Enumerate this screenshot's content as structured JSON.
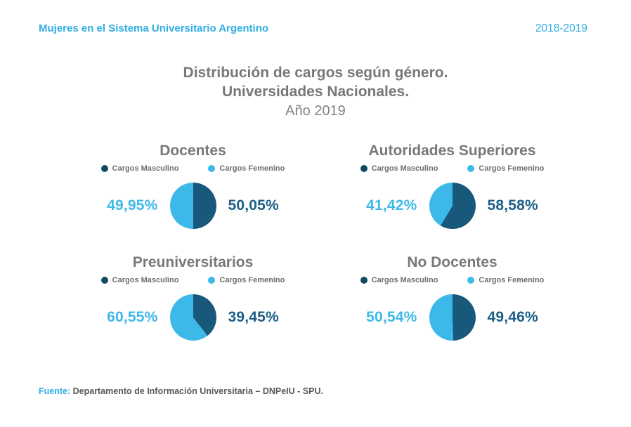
{
  "header": {
    "title": "Mujeres en el Sistema Universitario Argentino",
    "period": "2018-2019"
  },
  "main_title": {
    "line1": "Distribución de cargos según género.",
    "line2": "Universidades Nacionales.",
    "line3": "Año 2019"
  },
  "legend": {
    "masculino": "Cargos Masculino",
    "femenino": "Cargos Femenino"
  },
  "footer": {
    "label": "Fuente:",
    "text": "Departamento de Información Universitaria – DNPeIU - SPU."
  },
  "colors": {
    "accent": "#2FAEE3",
    "femenino": "#3DB9E9",
    "masculino": "#18587A",
    "masculino_text": "#1D5F87",
    "masculino_dot": "#114A63",
    "title_gray": "#77787B",
    "subtitle_gray": "#808285",
    "legend_gray": "#6D6E71",
    "footer_gray": "#58595B"
  },
  "chart_data": [
    {
      "type": "pie",
      "title": "Docentes",
      "legend_position": "top",
      "slices": [
        {
          "label": "Cargos Masculino",
          "value": 50.05,
          "display": "50,05%"
        },
        {
          "label": "Cargos Femenino",
          "value": 49.95,
          "display": "49,95%"
        }
      ]
    },
    {
      "type": "pie",
      "title": "Autoridades Superiores",
      "legend_position": "top",
      "slices": [
        {
          "label": "Cargos Masculino",
          "value": 58.58,
          "display": "58,58%"
        },
        {
          "label": "Cargos Femenino",
          "value": 41.42,
          "display": "41,42%"
        }
      ]
    },
    {
      "type": "pie",
      "title": "Preuniversitarios",
      "legend_position": "top",
      "slices": [
        {
          "label": "Cargos Masculino",
          "value": 39.45,
          "display": "39,45%"
        },
        {
          "label": "Cargos Femenino",
          "value": 60.55,
          "display": "60,55%"
        }
      ]
    },
    {
      "type": "pie",
      "title": "No Docentes",
      "legend_position": "top",
      "slices": [
        {
          "label": "Cargos Masculino",
          "value": 49.46,
          "display": "49,46%"
        },
        {
          "label": "Cargos Femenino",
          "value": 50.54,
          "display": "50,54%"
        }
      ]
    }
  ]
}
